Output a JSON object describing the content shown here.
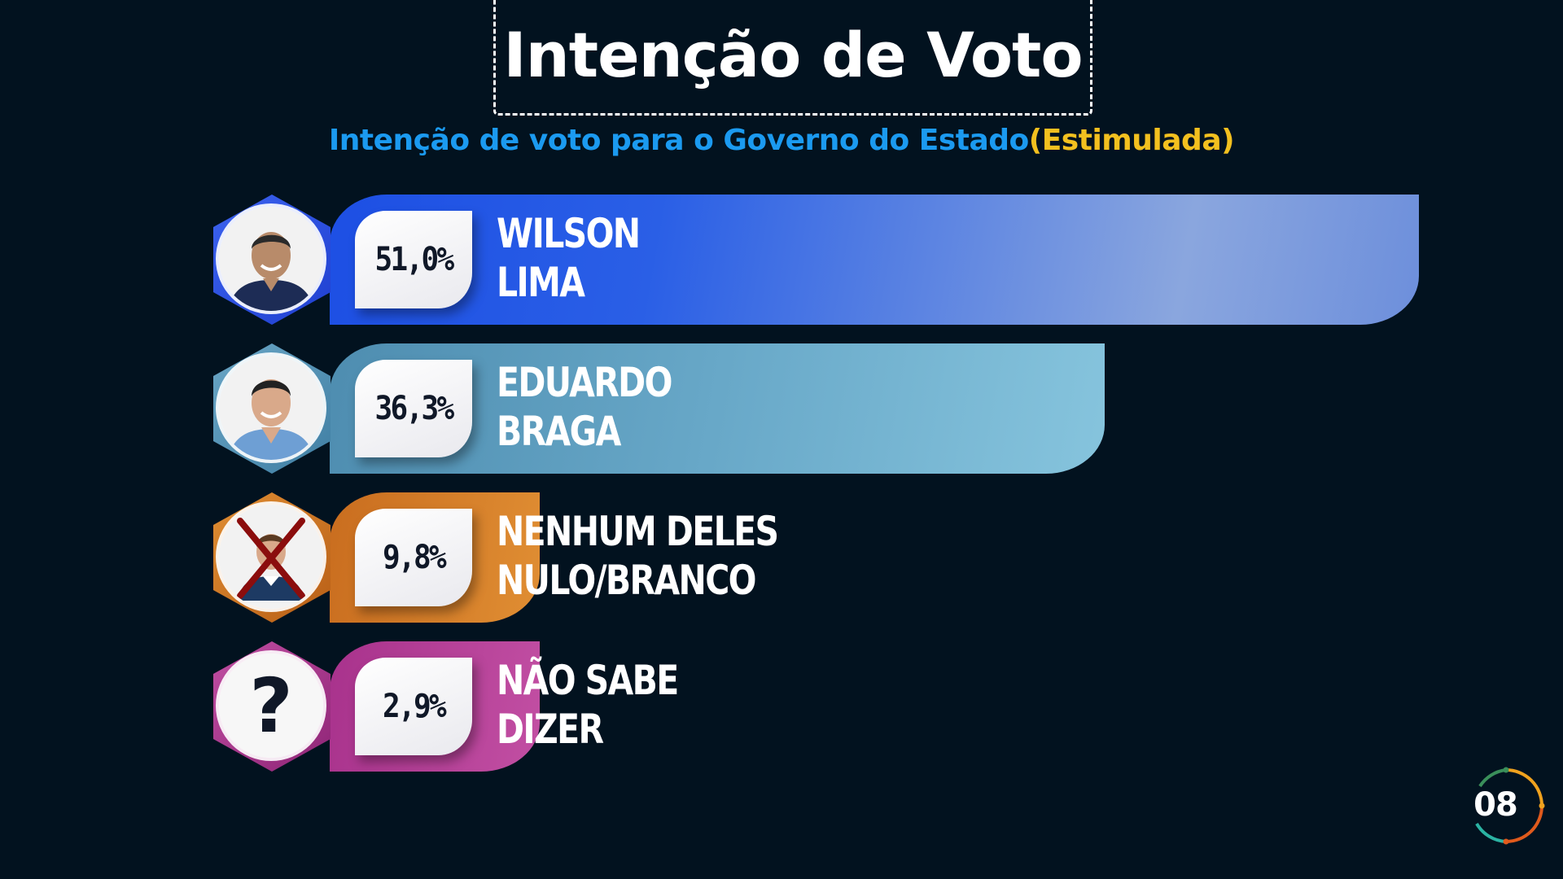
{
  "title": "Intenção de Voto",
  "subtitle": {
    "main": "Intenção de voto para o Governo do Estado",
    "accent": "(Estimulada)"
  },
  "chart_data": {
    "type": "bar",
    "orientation": "horizontal",
    "title": "Intenção de Voto",
    "subtitle": "Intenção de voto para o Governo do Estado(Estimulada)",
    "categories": [
      "WILSON LIMA",
      "EDUARDO BRAGA",
      "NENHUM DELES NULO/BRANCO",
      "NÃO SABE DIZER"
    ],
    "values": [
      51.0,
      36.3,
      9.8,
      2.9
    ],
    "labels": [
      "51,0%",
      "36,3%",
      "9,8%",
      "2,9%"
    ],
    "unit": "%",
    "xlim": [
      0,
      51.0
    ],
    "rows": [
      {
        "label": "51,0%",
        "value": 51.0,
        "name": [
          "WILSON",
          "LIMA"
        ],
        "color": "#2255e6",
        "icon": "candidate-photo-icon"
      },
      {
        "label": "36,3%",
        "value": 36.3,
        "name": [
          "EDUARDO",
          "BRAGA"
        ],
        "color": "#5d9bbd",
        "icon": "candidate-photo-icon"
      },
      {
        "label": "9,8%",
        "value": 9.8,
        "name": [
          "NENHUM DELES",
          "NULO/BRANCO"
        ],
        "color": "#d67f2a",
        "icon": "crossed-person-icon"
      },
      {
        "label": "2,9%",
        "value": 2.9,
        "name": [
          "NÃO SABE",
          "DIZER"
        ],
        "color": "#b23e96",
        "icon": "question-mark-icon"
      }
    ]
  },
  "page_badge": "08",
  "colors": {
    "background": "#02121f",
    "subtitle": "#1b9af0",
    "accent": "#f3c01f"
  }
}
